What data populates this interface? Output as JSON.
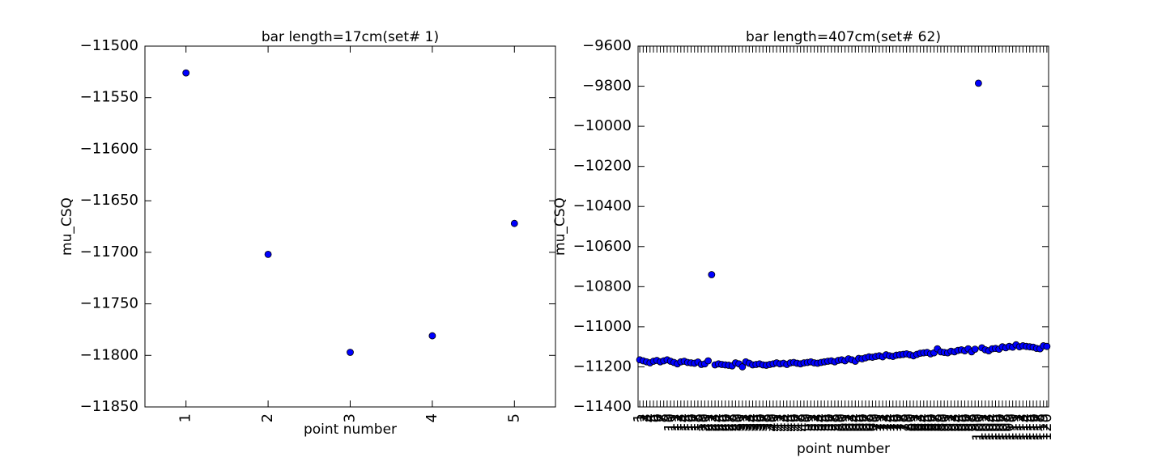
{
  "chart_data": [
    {
      "type": "scatter",
      "title": "bar length=17cm(set# 1)",
      "xlabel": "point number",
      "ylabel": "mu_CSQ",
      "x": [
        1,
        2,
        3,
        4,
        5
      ],
      "values": [
        -11526,
        -11702,
        -11797,
        -11781,
        -11672
      ],
      "color": "#0000ff",
      "xlim": [
        0.5,
        5.5
      ],
      "ylim": [
        -11850,
        -11500
      ],
      "xticks": [
        1,
        2,
        3,
        4,
        5
      ],
      "yticks": [
        {
          "value": -11850,
          "label": "−11850"
        },
        {
          "value": -11800,
          "label": "−11800"
        },
        {
          "value": -11750,
          "label": "−11750"
        },
        {
          "value": -11700,
          "label": "−11700"
        },
        {
          "value": -11650,
          "label": "−11650"
        },
        {
          "value": -11600,
          "label": "−11600"
        },
        {
          "value": -11550,
          "label": "−11550"
        },
        {
          "value": -11500,
          "label": "−11500"
        }
      ]
    },
    {
      "type": "scatter",
      "title": "bar length=407cm(set# 62)",
      "xlabel": "point number",
      "ylabel": "mu_CSQ",
      "x": [
        1,
        2,
        3,
        4,
        5,
        6,
        7,
        8,
        9,
        10,
        11,
        12,
        13,
        14,
        15,
        16,
        17,
        18,
        19,
        20,
        21,
        22,
        23,
        24,
        25,
        26,
        27,
        28,
        29,
        30,
        31,
        32,
        33,
        34,
        35,
        36,
        37,
        38,
        39,
        40,
        41,
        42,
        43,
        44,
        45,
        46,
        47,
        48,
        49,
        50,
        51,
        52,
        53,
        54,
        55,
        56,
        57,
        58,
        59,
        60,
        61,
        62,
        63,
        64,
        65,
        66,
        67,
        68,
        69,
        70,
        71,
        72,
        73,
        74,
        75,
        76,
        77,
        78,
        79,
        80,
        81,
        82,
        83,
        84,
        85,
        86,
        87,
        88,
        89,
        90,
        91,
        92,
        93,
        94,
        95,
        96,
        97,
        98,
        99,
        100,
        101,
        102,
        103,
        104,
        105,
        106,
        107,
        108,
        109,
        110,
        111,
        112,
        113,
        114,
        115,
        116,
        117,
        118,
        119,
        120
      ],
      "values": [
        -11165,
        -11170,
        -11175,
        -11180,
        -11172,
        -11168,
        -11175,
        -11170,
        -11165,
        -11172,
        -11178,
        -11185,
        -11175,
        -11172,
        -11178,
        -11180,
        -11182,
        -11176,
        -11188,
        -11185,
        -11170,
        -10740,
        -11190,
        -11185,
        -11188,
        -11190,
        -11192,
        -11195,
        -11180,
        -11185,
        -11200,
        -11175,
        -11182,
        -11190,
        -11188,
        -11185,
        -11190,
        -11192,
        -11188,
        -11185,
        -11180,
        -11185,
        -11182,
        -11188,
        -11180,
        -11178,
        -11182,
        -11185,
        -11180,
        -11178,
        -11175,
        -11180,
        -11182,
        -11178,
        -11175,
        -11172,
        -11170,
        -11175,
        -11168,
        -11165,
        -11170,
        -11160,
        -11165,
        -11172,
        -11158,
        -11160,
        -11155,
        -11150,
        -11152,
        -11148,
        -11145,
        -11150,
        -11140,
        -11145,
        -11148,
        -11142,
        -11140,
        -11138,
        -11135,
        -11140,
        -11145,
        -11138,
        -11132,
        -11130,
        -11128,
        -11135,
        -11130,
        -11110,
        -11125,
        -11128,
        -11130,
        -11122,
        -11125,
        -11118,
        -11115,
        -11120,
        -11110,
        -11125,
        -11112,
        -9785,
        -11105,
        -11115,
        -11120,
        -11110,
        -11108,
        -11112,
        -11100,
        -11105,
        -11098,
        -11102,
        -11090,
        -11100,
        -11095,
        -11098,
        -11100,
        -11102,
        -11108,
        -11110,
        -11095,
        -11098
      ],
      "color": "#0000ff",
      "xlim": [
        0.5,
        120.5
      ],
      "ylim": [
        -11400,
        -9600
      ],
      "xticks": [
        1,
        2,
        3,
        4,
        5,
        6,
        7,
        8,
        9,
        10,
        11,
        12,
        13,
        14,
        15,
        16,
        17,
        18,
        19,
        20,
        21,
        22,
        23,
        24,
        25,
        26,
        27,
        28,
        29,
        30,
        31,
        32,
        33,
        34,
        35,
        36,
        37,
        38,
        39,
        40,
        41,
        42,
        43,
        44,
        45,
        46,
        47,
        48,
        49,
        50,
        51,
        52,
        53,
        54,
        55,
        56,
        57,
        58,
        59,
        60,
        61,
        62,
        63,
        64,
        65,
        66,
        67,
        68,
        69,
        70,
        71,
        72,
        73,
        74,
        75,
        76,
        77,
        78,
        79,
        80,
        81,
        82,
        83,
        84,
        85,
        86,
        87,
        88,
        89,
        90,
        91,
        92,
        93,
        94,
        95,
        96,
        97,
        98,
        99,
        100,
        101,
        102,
        103,
        104,
        105,
        106,
        107,
        108,
        109,
        110,
        111,
        112,
        113,
        114,
        115,
        116,
        117,
        118,
        119,
        120
      ],
      "yticks": [
        {
          "value": -11400,
          "label": "−11400"
        },
        {
          "value": -11200,
          "label": "−11200"
        },
        {
          "value": -11000,
          "label": "−11000"
        },
        {
          "value": -10800,
          "label": "−10800"
        },
        {
          "value": -10600,
          "label": "−10600"
        },
        {
          "value": -10400,
          "label": "−10400"
        },
        {
          "value": -10200,
          "label": "−10200"
        },
        {
          "value": -10000,
          "label": "−10000"
        },
        {
          "value": -9800,
          "label": "−9800"
        },
        {
          "value": -9600,
          "label": "−9600"
        }
      ]
    }
  ]
}
